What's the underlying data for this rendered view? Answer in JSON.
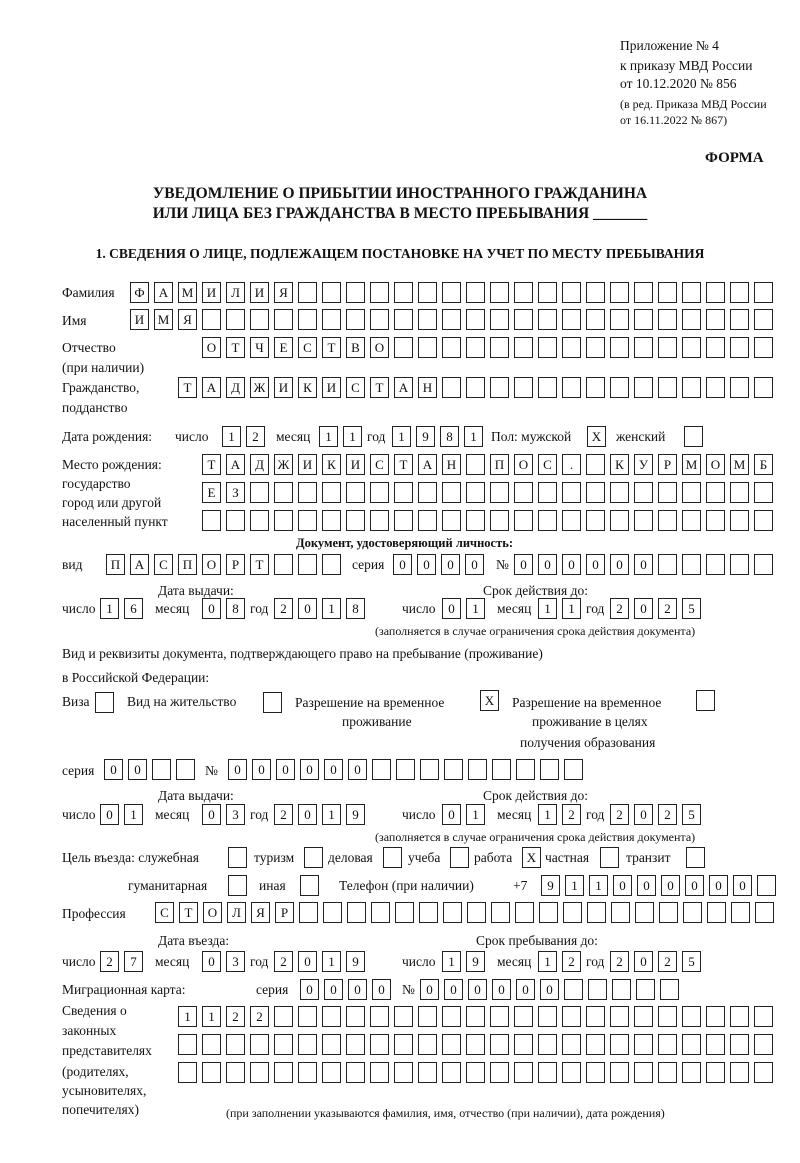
{
  "header": {
    "appendix": "Приложение № 4",
    "order": "к приказу МВД России",
    "order_date": "от 10.12.2020 № 856",
    "edition1": "(в ред. Приказа МВД России",
    "edition2": "от 16.11.2022 № 867)",
    "form_label": "ФОРМА",
    "title1": "УВЕДОМЛЕНИЕ О ПРИБЫТИИ ИНОСТРАННОГО ГРАЖДАНИНА",
    "title2": "ИЛИ ЛИЦА БЕЗ ГРАЖДАНСТВА В МЕСТО ПРЕБЫВАНИЯ _______",
    "section1": "1. СВЕДЕНИЯ О ЛИЦЕ, ПОДЛЕЖАЩЕМ ПОСТАНОВКЕ НА УЧЕТ ПО МЕСТУ ПРЕБЫВАНИЯ"
  },
  "labels": {
    "surname": "Фамилия",
    "name": "Имя",
    "patronymic": "Отчество",
    "patronymic2": "(при наличии)",
    "citizenship": "Гражданство,",
    "citizenship2": "подданство",
    "birth_date": "Дата рождения:",
    "day": "число",
    "month": "месяц",
    "year": "год",
    "sex": "Пол: мужской",
    "female": "женский",
    "birthplace1": "Место рождения:",
    "birthplace2": "государство",
    "birthplace3": "город или другой",
    "birthplace4": "населенный пункт",
    "id_doc": "Документ, удостоверяющий личность:",
    "kind": "вид",
    "series": "серия",
    "number": "№",
    "issue_date": "Дата выдачи:",
    "valid_until": "Срок действия до:",
    "validity_note": "(заполняется в случае ограничения срока действия документа)",
    "right_doc1": "Вид и реквизиты документа, подтверждающего право на пребывание (проживание)",
    "right_doc2": "в Российской Федерации:",
    "visa": "Виза",
    "residence": "Вид на жительство",
    "temp_res1": "Разрешение на временное",
    "temp_res2": "проживание",
    "temp_edu1": "Разрешение на временное",
    "temp_edu2": "проживание в целях",
    "temp_edu3": "получения образования",
    "purpose": "Цель въезда: служебная",
    "tourism": "туризм",
    "business": "деловая",
    "study": "учеба",
    "work": "работа",
    "private": "частная",
    "transit": "транзит",
    "humanitarian": "гуманитарная",
    "other": "иная",
    "phone": "Телефон (при наличии)",
    "phone_prefix": "+7",
    "profession": "Профессия",
    "entry_date": "Дата въезда:",
    "stay_until": "Срок пребывания до:",
    "migration_card": "Миграционная карта:",
    "reps1": "Сведения о",
    "reps2": "законных",
    "reps3": "представителях",
    "reps4": "(родителях,",
    "reps5": "усыновителях,",
    "reps6": "попечителях)",
    "reps_note": "(при заполнении указываются фамилия, имя, отчество (при наличии), дата рождения)"
  },
  "person": {
    "surname": "ФАМИЛИЯ",
    "name": "ИМЯ",
    "patronymic": "ОТЧЕСТВО",
    "citizenship": "ТАДЖИКИСТАН",
    "birth_day": "12",
    "birth_month": "11",
    "birth_year": "1981",
    "sex_male": "X",
    "sex_female": "",
    "birthplace1": "ТАДЖИКИСТАН ПОС. КУРМОМБ",
    "birthplace2": "ЕЗ",
    "birthplace3": ""
  },
  "id_document": {
    "kind": "ПАСПОРТ",
    "series": "0000",
    "number": "000000",
    "issue_day": "16",
    "issue_month": "08",
    "issue_year": "2018",
    "valid_day": "01",
    "valid_month": "11",
    "valid_year": "2025"
  },
  "right_document": {
    "visa": "",
    "residence_permit": "",
    "temporary_residence": "X",
    "temporary_residence_education": "",
    "series": "00",
    "number": "000000",
    "issue_day": "01",
    "issue_month": "03",
    "issue_year": "2019",
    "valid_day": "01",
    "valid_month": "12",
    "valid_year": "2025"
  },
  "purpose": {
    "official": "",
    "tourism": "",
    "business": "",
    "study": "",
    "work": "X",
    "private": "",
    "transit": "",
    "humanitarian": "",
    "other": ""
  },
  "phone": "911000000",
  "profession": "СТОЛЯР",
  "entry": {
    "day": "27",
    "month": "03",
    "year": "2019",
    "stay_day": "19",
    "stay_month": "12",
    "stay_year": "2025"
  },
  "migration_card": {
    "series": "0000",
    "number": "000000"
  },
  "representatives": {
    "line1": "1122",
    "line2": "",
    "line3": ""
  }
}
